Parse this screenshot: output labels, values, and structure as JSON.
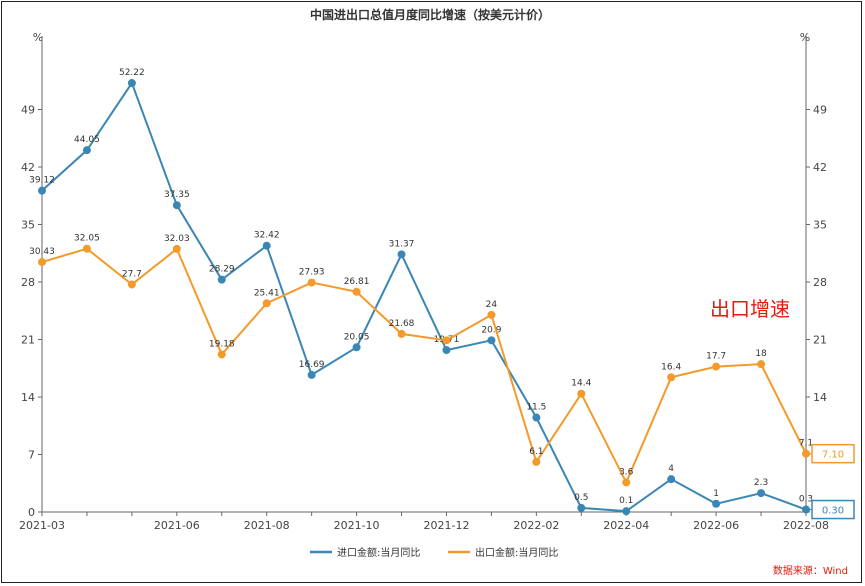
{
  "chart_data": {
    "type": "line",
    "title": "中国进出口总值月度同比增速（按美元计价）",
    "y_unit_left": "%",
    "y_unit_right": "%",
    "ylim": [
      0,
      56
    ],
    "yticks": [
      0,
      7,
      14,
      21,
      28,
      35,
      42,
      49
    ],
    "x": [
      "2021-03",
      "2021-04",
      "2021-05",
      "2021-06",
      "2021-07",
      "2021-08",
      "2021-09",
      "2021-10",
      "2021-11",
      "2021-12",
      "2022-01",
      "2022-02",
      "2022-03",
      "2022-04",
      "2022-05",
      "2022-06",
      "2022-07",
      "2022-08"
    ],
    "xtick_labels": [
      "2021-03",
      "2021-06",
      "2021-08",
      "2021-10",
      "2021-12",
      "2022-02",
      "2022-04",
      "2022-06",
      "2022-08"
    ],
    "series": [
      {
        "name": "进口金额:当月同比",
        "color": "#3a86b5",
        "values": [
          39.12,
          44.05,
          52.22,
          37.35,
          28.29,
          32.42,
          16.69,
          20.05,
          31.37,
          19.71,
          20.9,
          11.5,
          0.5,
          0.1,
          4,
          1,
          2.3,
          0.3
        ],
        "labels": [
          "39.12",
          "44.05",
          "52.22",
          "37.35",
          "28.29",
          "32.42",
          "16.69",
          "20.05",
          "31.37",
          "19.71",
          "20.9",
          "11.5",
          "0.5",
          "0.1",
          "4",
          "1",
          "2.3",
          "0.3"
        ],
        "end_label": "0.30"
      },
      {
        "name": "出口金额:当月同比",
        "color": "#f39a2b",
        "values": [
          30.43,
          32.05,
          27.7,
          32.03,
          19.18,
          25.41,
          27.93,
          26.81,
          21.68,
          20.9,
          24,
          6.1,
          14.4,
          3.6,
          16.4,
          17.7,
          18,
          7.1
        ],
        "labels": [
          "30.43",
          "32.05",
          "27.7",
          "32.03",
          "19.18",
          "25.41",
          "27.93",
          "26.81",
          "21.68",
          "",
          "24",
          "6.1",
          "14.4",
          "3.6",
          "16.4",
          "17.7",
          "18",
          "7.1"
        ],
        "end_label": "7.10"
      }
    ],
    "annotation": "出口增速",
    "source": "数据来源：Wind",
    "legend_position": "bottom"
  }
}
